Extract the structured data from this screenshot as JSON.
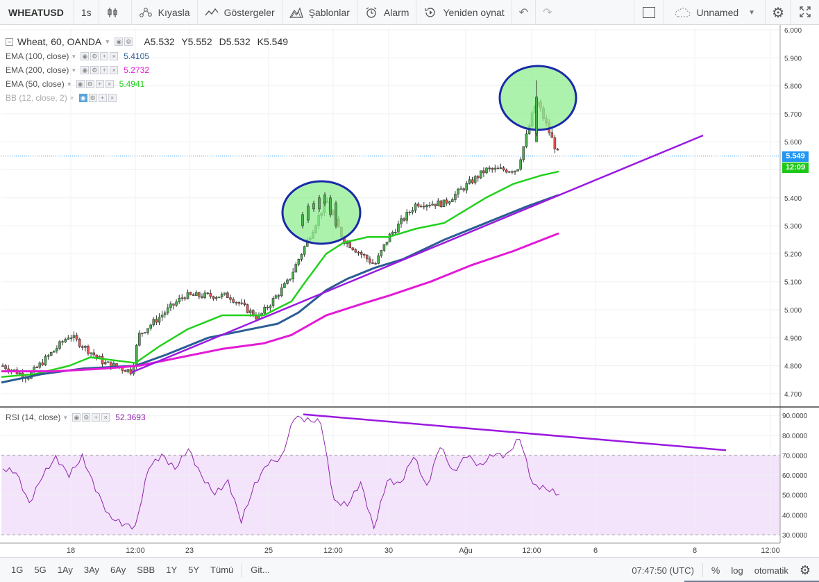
{
  "toolbar": {
    "symbol": "WHEATUSD",
    "interval": "1s",
    "compare": "Kıyasla",
    "indicators": "Göstergeler",
    "templates": "Şablonlar",
    "alert": "Alarm",
    "replay": "Yeniden oynat",
    "layout_name": "Unnamed"
  },
  "legend": {
    "title": "Wheat, 60, OANDA",
    "ohlc": [
      "A5.532",
      "Y5.552",
      "D5.532",
      "K5.549"
    ],
    "indicators": [
      {
        "label": "EMA (100, close)",
        "value": "5.4105",
        "color": "#2b5d94"
      },
      {
        "label": "EMA (200, close)",
        "value": "5.2732",
        "color": "#e31ad6"
      },
      {
        "label": "EMA (50, close)",
        "value": "5.4941",
        "color": "#22d11c"
      },
      {
        "label": "BB (12, close, 2)",
        "value": "",
        "color": "#aaaaaa"
      }
    ],
    "rsi_label": "RSI (14, close)",
    "rsi_value": "52.3693"
  },
  "price_scale": {
    "ticks": [
      "6.000",
      "5.900",
      "5.800",
      "5.700",
      "5.600",
      "5.500",
      "5.400",
      "5.300",
      "5.200",
      "5.100",
      "5.000",
      "4.900",
      "4.800",
      "4.700"
    ],
    "last_price": "5.549",
    "countdown": "12:09"
  },
  "rsi_scale": {
    "ticks": [
      "90.0000",
      "80.0000",
      "70.0000",
      "60.0000",
      "50.0000",
      "40.0000",
      "30.0000"
    ]
  },
  "time_axis": {
    "ticks": [
      "18",
      "12:00",
      "23",
      "25",
      "12:00",
      "30",
      "Ağu",
      "12:00",
      "6",
      "8",
      "12:00"
    ]
  },
  "bottombar": {
    "ranges": [
      "1G",
      "5G",
      "1Ay",
      "3Ay",
      "6Ay",
      "SBB",
      "1Y",
      "5Y",
      "Tümü"
    ],
    "goto": "Git...",
    "clock": "07:47:50 (UTC)",
    "percent": "%",
    "log": "log",
    "auto": "otomatik"
  },
  "colors": {
    "up_candle": "#4caf50",
    "down_candle": "#ef5350",
    "ema50": "#22d11c",
    "ema100": "#2b5d94",
    "ema200": "#e31ad6",
    "trendline": "#9b19e0",
    "rsi_line": "#8e24aa",
    "rsi_band": "#f3e3fb",
    "highlight_fill": "#90ee90",
    "highlight_stroke": "#1a2aa8",
    "last_price_tag": "#2196f3",
    "countdown_tag": "#1ec81a"
  },
  "chart_data": [
    {
      "type": "candlestick",
      "title": "Wheat, 60, OANDA",
      "x_ticks": [
        "18",
        "12:00",
        "23",
        "25",
        "12:00",
        "30",
        "Ağu",
        "12:00",
        "6",
        "8",
        "12:00"
      ],
      "ylim": [
        4.65,
        6.0
      ],
      "close_path": [
        {
          "x": "17",
          "y": 4.8
        },
        {
          "x": "18",
          "y": 4.76
        },
        {
          "x": "19",
          "y": 4.91
        },
        {
          "x": "21",
          "y": 4.81
        },
        {
          "x": "22",
          "y": 4.78
        },
        {
          "x": "22 12:00",
          "y": 4.91
        },
        {
          "x": "23",
          "y": 5.05
        },
        {
          "x": "24",
          "y": 5.05
        },
        {
          "x": "25",
          "y": 4.97
        },
        {
          "x": "26",
          "y": 5.1
        },
        {
          "x": "26 12:00",
          "y": 5.39
        },
        {
          "x": "27",
          "y": 5.25
        },
        {
          "x": "29",
          "y": 5.16
        },
        {
          "x": "30",
          "y": 5.26
        },
        {
          "x": "31",
          "y": 5.38
        },
        {
          "x": "Ağu",
          "y": 5.38
        },
        {
          "x": "2",
          "y": 5.5
        },
        {
          "x": "3",
          "y": 5.5
        },
        {
          "x": "3 12:00",
          "y": 5.75
        },
        {
          "x": "4",
          "y": 5.549
        }
      ],
      "series": [
        {
          "name": "EMA (50, close)",
          "last": 5.4941
        },
        {
          "name": "EMA (100, close)",
          "last": 5.4105
        },
        {
          "name": "EMA (200, close)",
          "last": 5.2732
        }
      ]
    },
    {
      "type": "line",
      "title": "RSI (14, close)",
      "ylim": [
        28,
        94
      ],
      "bands": [
        30,
        70
      ],
      "last": 52.3693,
      "values": [
        65,
        62,
        45,
        58,
        70,
        60,
        68,
        55,
        40,
        35,
        32,
        65,
        70,
        62,
        75,
        60,
        50,
        55,
        38,
        55,
        65,
        70,
        90,
        87,
        85,
        48,
        45,
        55,
        35,
        58,
        55,
        68,
        55,
        75,
        60,
        72,
        65,
        70,
        68,
        80,
        55,
        52,
        52
      ]
    }
  ]
}
